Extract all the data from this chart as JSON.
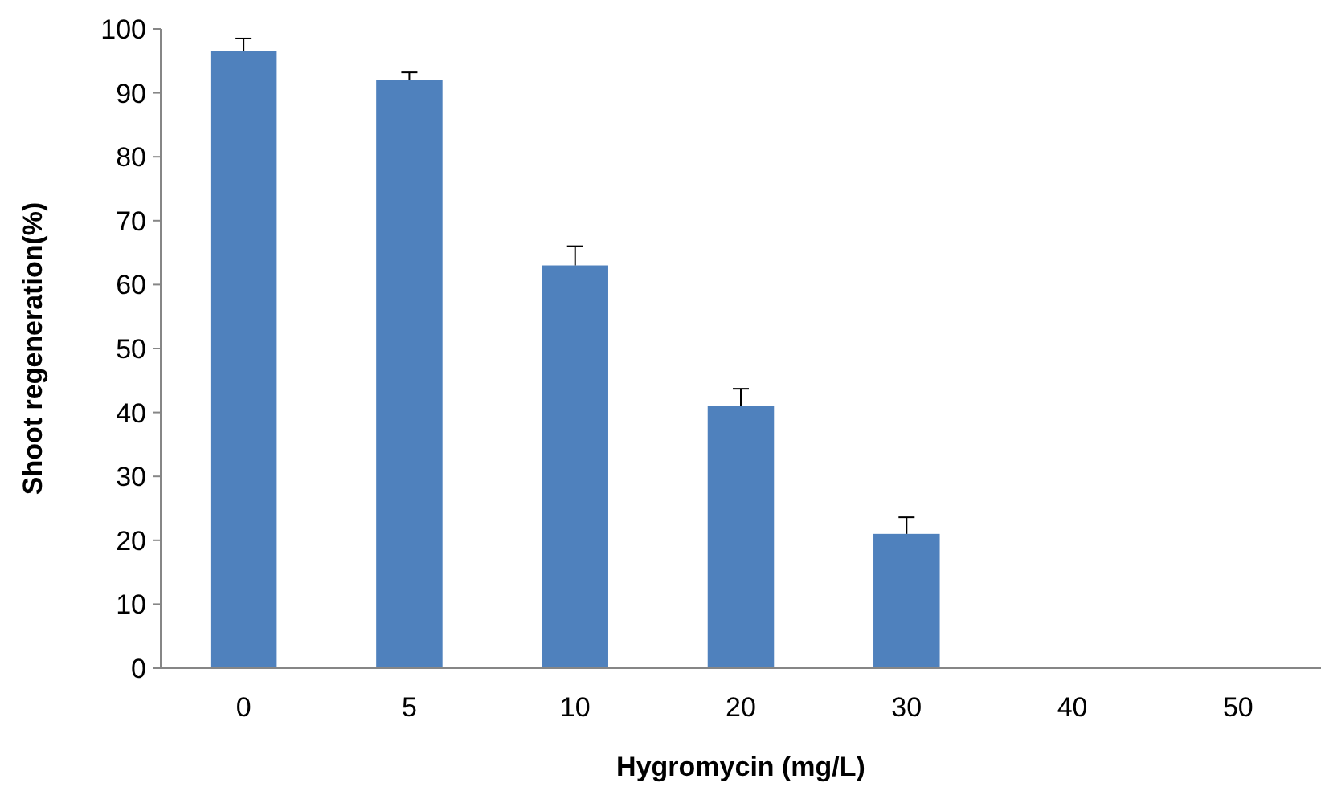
{
  "chart_data": {
    "type": "bar",
    "xlabel": "Hygromycin (mg/L)",
    "ylabel": "Shoot regeneration(%)",
    "categories": [
      "0",
      "5",
      "10",
      "20",
      "30",
      "40",
      "50"
    ],
    "values": [
      96.5,
      92,
      63,
      41,
      21,
      0,
      0
    ],
    "errors": [
      [
        96.5,
        98.5
      ],
      [
        92,
        93.2
      ],
      [
        63,
        66
      ],
      [
        41,
        43.7
      ],
      [
        21,
        23.6
      ],
      null,
      null
    ],
    "color": "#4f81bd",
    "ylim": [
      0,
      100
    ],
    "yticks": [
      0,
      10,
      20,
      30,
      40,
      50,
      60,
      70,
      80,
      90,
      100
    ],
    "grid": false
  }
}
